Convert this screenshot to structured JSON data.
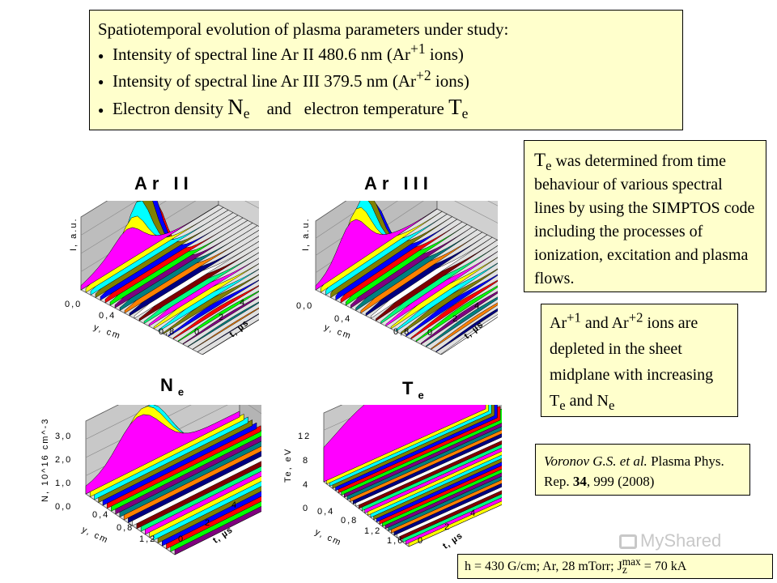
{
  "header": {
    "title": "Spatiotemporal evolution of plasma parameters under study:",
    "items": [
      {
        "text": "Intensity of spectral line Ar II 480.6 nm (Ar",
        "sup": "+1",
        "tail": " ions)"
      },
      {
        "text": "Intensity of spectral line Ar III 379.5 nm (Ar",
        "sup": "+2",
        "tail": " ions)"
      }
    ],
    "item3": {
      "a": "Electron density ",
      "ne": "N",
      "ne_sub": "e",
      "mid": "and",
      "b": "electron temperature ",
      "te": "T",
      "te_sub": "e"
    }
  },
  "te_note": {
    "sym": "T",
    "sub": "e",
    "text": " was determined from time behaviour of various spectral lines by using the SIMPTOS code including the processes of ionization, excitation and plasma flows."
  },
  "ions_note": {
    "a": "Ar",
    "a_sup": "+1",
    "b": " and Ar",
    "b_sup": "+2",
    "c": " ions are depleted in the sheet midplane with increasing T",
    "d_sub": "e",
    "e": " and N",
    "f_sub": "e"
  },
  "reference": {
    "authors": "Voronov G.S. et al.",
    "journal": " Plasma Phys. Rep. ",
    "volume": "34",
    "rest": ", 999 (2008)"
  },
  "params": {
    "text": "h = 430 G/cm; Ar, 28 mTorr; J",
    "sub": "z",
    "sup": "max",
    "tail": " = 70 kA"
  },
  "watermark": "MyShared",
  "panels": [
    {
      "title": "Ar II",
      "title_sub": "",
      "zlabel": "I, a.u.",
      "zticks": [
        "0,0"
      ],
      "ylabel": "y, cm",
      "yticks": [
        "0,4",
        "0,8"
      ],
      "tlabel": "t, µs",
      "tticks": [
        "0",
        "2",
        "4"
      ]
    },
    {
      "title": "Ar III",
      "title_sub": "",
      "zlabel": "I, a.u.",
      "zticks": [
        "0,0"
      ],
      "ylabel": "y, cm",
      "yticks": [
        "0,4",
        "0,8"
      ],
      "tlabel": "t, µs",
      "tticks": [
        "0",
        "2",
        "4"
      ]
    },
    {
      "title": "N",
      "title_sub": "e",
      "zlabel": "N, 10^16 cm^-3",
      "zticks": [
        "3,0",
        "2,0",
        "1,0",
        "0,0"
      ],
      "ylabel": "y, cm",
      "yticks": [
        "0,4",
        "0,8",
        "1,2"
      ],
      "tlabel": "t, µs",
      "tticks": [
        "0",
        "2",
        "4"
      ]
    },
    {
      "title": "T",
      "title_sub": "e",
      "zlabel": "Te, eV",
      "zticks": [
        "12",
        "8",
        "4",
        "0"
      ],
      "ylabel": "y, cm",
      "yticks": [
        "0,4",
        "0,8",
        "1,2",
        "1,6"
      ],
      "tlabel": "t, µs",
      "tticks": [
        "0",
        "2",
        "4"
      ]
    }
  ]
}
